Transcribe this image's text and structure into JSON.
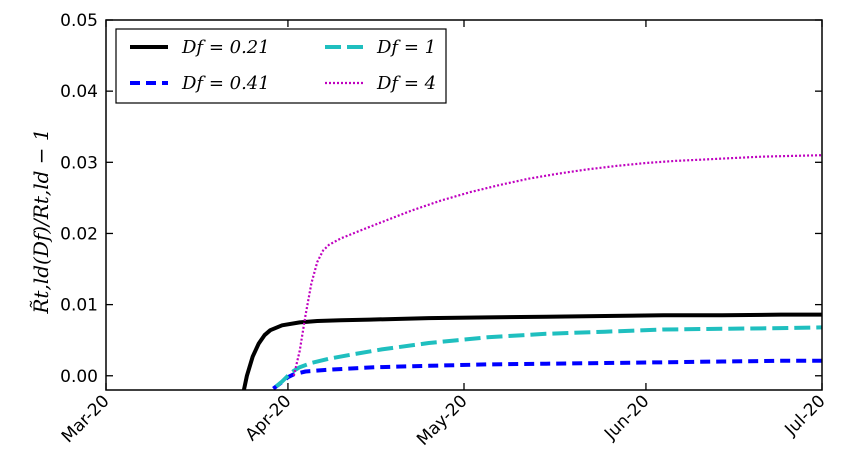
{
  "chart_data": {
    "type": "line",
    "title": "",
    "xlabel": "",
    "ylabel": "R̃t,ld(Df)/Rt,ld − 1",
    "ylim": [
      -0.002,
      0.05
    ],
    "xlim_days": [
      0,
      122
    ],
    "x_ticks": [
      {
        "label": "Mar-20",
        "day": 0
      },
      {
        "label": "Apr-20",
        "day": 31
      },
      {
        "label": "May-20",
        "day": 61
      },
      {
        "label": "Jun-20",
        "day": 92
      },
      {
        "label": "Jul-20",
        "day": 122
      }
    ],
    "y_ticks": [
      {
        "label": "0.00",
        "value": 0.0
      },
      {
        "label": "0.01",
        "value": 0.01
      },
      {
        "label": "0.02",
        "value": 0.02
      },
      {
        "label": "0.03",
        "value": 0.03
      },
      {
        "label": "0.04",
        "value": 0.04
      },
      {
        "label": "0.05",
        "value": 0.05
      }
    ],
    "grid": false,
    "legend_position": "top-left",
    "series": [
      {
        "name": "D_f = 0.21",
        "legend_label": "Df = 0.21",
        "color": "#000000",
        "style": "solid",
        "x": [
          23.5,
          24,
          25,
          26,
          27,
          28,
          30,
          33,
          36,
          40,
          45,
          55,
          65,
          75,
          85,
          95,
          105,
          115,
          122
        ],
        "y": [
          -0.002,
          0.0,
          0.0027,
          0.0045,
          0.0057,
          0.0064,
          0.0071,
          0.0075,
          0.0077,
          0.0078,
          0.0079,
          0.0081,
          0.0082,
          0.0083,
          0.0084,
          0.0085,
          0.0085,
          0.0086,
          0.0086
        ]
      },
      {
        "name": "D_f = 0.41",
        "legend_label": "Df = 0.41",
        "color": "#0000ff",
        "style": "dashed",
        "x": [
          28.5,
          29.5,
          31,
          32,
          34,
          37,
          41,
          46,
          55,
          65,
          75,
          85,
          95,
          105,
          115,
          122
        ],
        "y": [
          -0.0018,
          -0.0012,
          -0.0002,
          0.0002,
          0.0006,
          0.0008,
          0.001,
          0.0012,
          0.0014,
          0.0016,
          0.0017,
          0.0018,
          0.0019,
          0.002,
          0.0021,
          0.0021
        ]
      },
      {
        "name": "D_f = 1",
        "legend_label": "Df = 1",
        "color": "#1fbfbf",
        "style": "dashdot",
        "x": [
          29,
          30,
          31,
          32,
          33,
          35,
          38,
          42,
          47,
          55,
          65,
          75,
          85,
          95,
          105,
          115,
          122
        ],
        "y": [
          -0.0015,
          -0.0008,
          0.0,
          0.0007,
          0.0012,
          0.0018,
          0.0024,
          0.003,
          0.0037,
          0.0046,
          0.0054,
          0.0059,
          0.0062,
          0.0065,
          0.0066,
          0.0067,
          0.0068
        ]
      },
      {
        "name": "D_f = 4",
        "legend_label": "Df = 4",
        "color": "#bf00bf",
        "style": "dotted",
        "x": [
          32,
          33,
          34,
          35,
          36,
          37,
          38,
          40,
          43,
          47,
          52,
          57,
          62,
          67,
          72,
          77,
          82,
          87,
          92,
          97,
          102,
          107,
          112,
          117,
          122
        ],
        "y": [
          0.0,
          0.0035,
          0.0085,
          0.013,
          0.016,
          0.0176,
          0.0184,
          0.0193,
          0.0203,
          0.0216,
          0.0232,
          0.0246,
          0.0258,
          0.0268,
          0.0277,
          0.0284,
          0.029,
          0.0295,
          0.0299,
          0.0302,
          0.0304,
          0.0306,
          0.0308,
          0.0309,
          0.031
        ]
      }
    ]
  }
}
